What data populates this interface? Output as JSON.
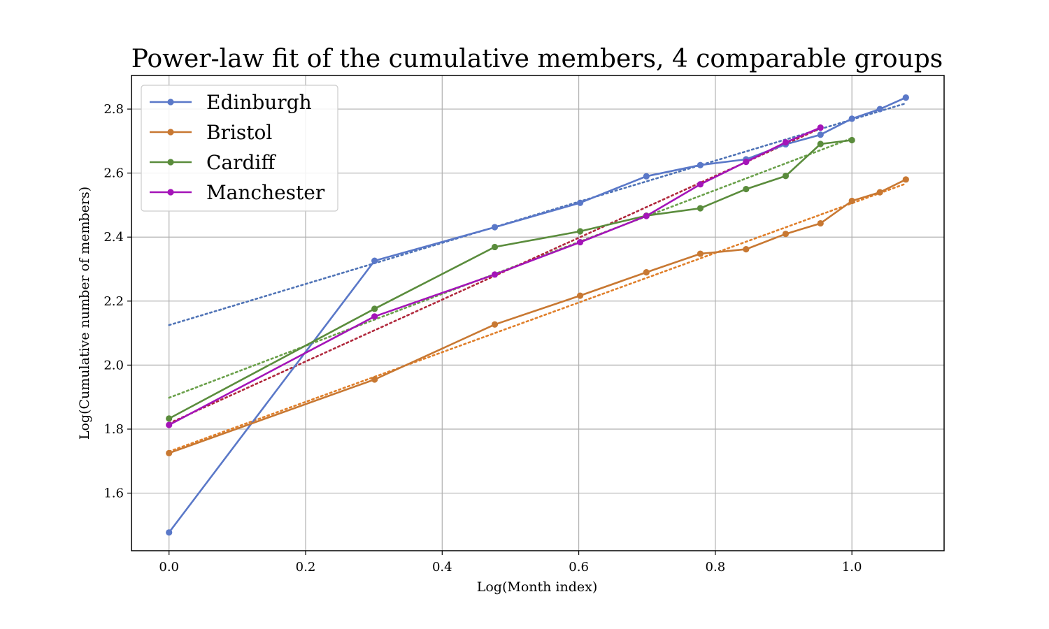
{
  "chart_data": {
    "type": "line",
    "title": "Power-law fit of the cumulative members, 4 comparable groups",
    "xlabel": "Log(Month index)",
    "ylabel": "Log(Cumulative number of members)",
    "xlim": [
      -0.055,
      1.135
    ],
    "ylim": [
      1.42,
      2.905
    ],
    "xticks": [
      0.0,
      0.2,
      0.4,
      0.6,
      0.8,
      1.0
    ],
    "xtick_labels": [
      "0.0",
      "0.2",
      "0.4",
      "0.6",
      "0.8",
      "1.0"
    ],
    "yticks": [
      1.6,
      1.8,
      2.0,
      2.2,
      2.4,
      2.6,
      2.8
    ],
    "ytick_labels": [
      "1.6",
      "1.8",
      "2.0",
      "2.2",
      "2.4",
      "2.6",
      "2.8"
    ],
    "grid": true,
    "legend_position": "top-left",
    "series": [
      {
        "name": "Edinburgh",
        "color": "#5a78c8",
        "fit_color": "#4f73b6",
        "x": [
          0.0,
          0.301,
          0.477,
          0.602,
          0.699,
          0.778,
          0.845,
          0.903,
          0.954,
          1.0,
          1.041,
          1.079
        ],
        "y": [
          1.477,
          2.326,
          2.431,
          2.507,
          2.59,
          2.625,
          2.643,
          2.69,
          2.72,
          2.77,
          2.8,
          2.836
        ],
        "fit": {
          "x": [
            0.0,
            1.079
          ],
          "y": [
            2.125,
            2.818
          ]
        }
      },
      {
        "name": "Bristol",
        "color": "#c87832",
        "fit_color": "#e07f2a",
        "x": [
          0.0,
          0.301,
          0.477,
          0.602,
          0.699,
          0.778,
          0.845,
          0.903,
          0.954,
          1.0,
          1.041,
          1.079
        ],
        "y": [
          1.725,
          1.955,
          2.127,
          2.217,
          2.29,
          2.348,
          2.362,
          2.41,
          2.443,
          2.513,
          2.54,
          2.58
        ],
        "fit": {
          "x": [
            0.0,
            1.079
          ],
          "y": [
            1.73,
            2.567
          ]
        }
      },
      {
        "name": "Cardiff",
        "color": "#5a8c3c",
        "fit_color": "#6aa04a",
        "x": [
          0.0,
          0.301,
          0.477,
          0.602,
          0.699,
          0.778,
          0.845,
          0.903,
          0.954,
          1.0
        ],
        "y": [
          1.833,
          2.176,
          2.369,
          2.418,
          2.467,
          2.49,
          2.55,
          2.591,
          2.691,
          2.703
        ],
        "fit": {
          "x": [
            0.0,
            1.0
          ],
          "y": [
            1.898,
            2.709
          ]
        }
      },
      {
        "name": "Manchester",
        "color": "#a414b8",
        "fit_color": "#b0283c",
        "x": [
          0.0,
          0.301,
          0.477,
          0.602,
          0.699,
          0.778,
          0.845,
          0.903,
          0.954
        ],
        "y": [
          1.813,
          2.152,
          2.283,
          2.384,
          2.466,
          2.565,
          2.635,
          2.696,
          2.742
        ],
        "fit": {
          "x": [
            0.0,
            0.954
          ],
          "y": [
            1.818,
            2.74
          ]
        }
      }
    ]
  }
}
